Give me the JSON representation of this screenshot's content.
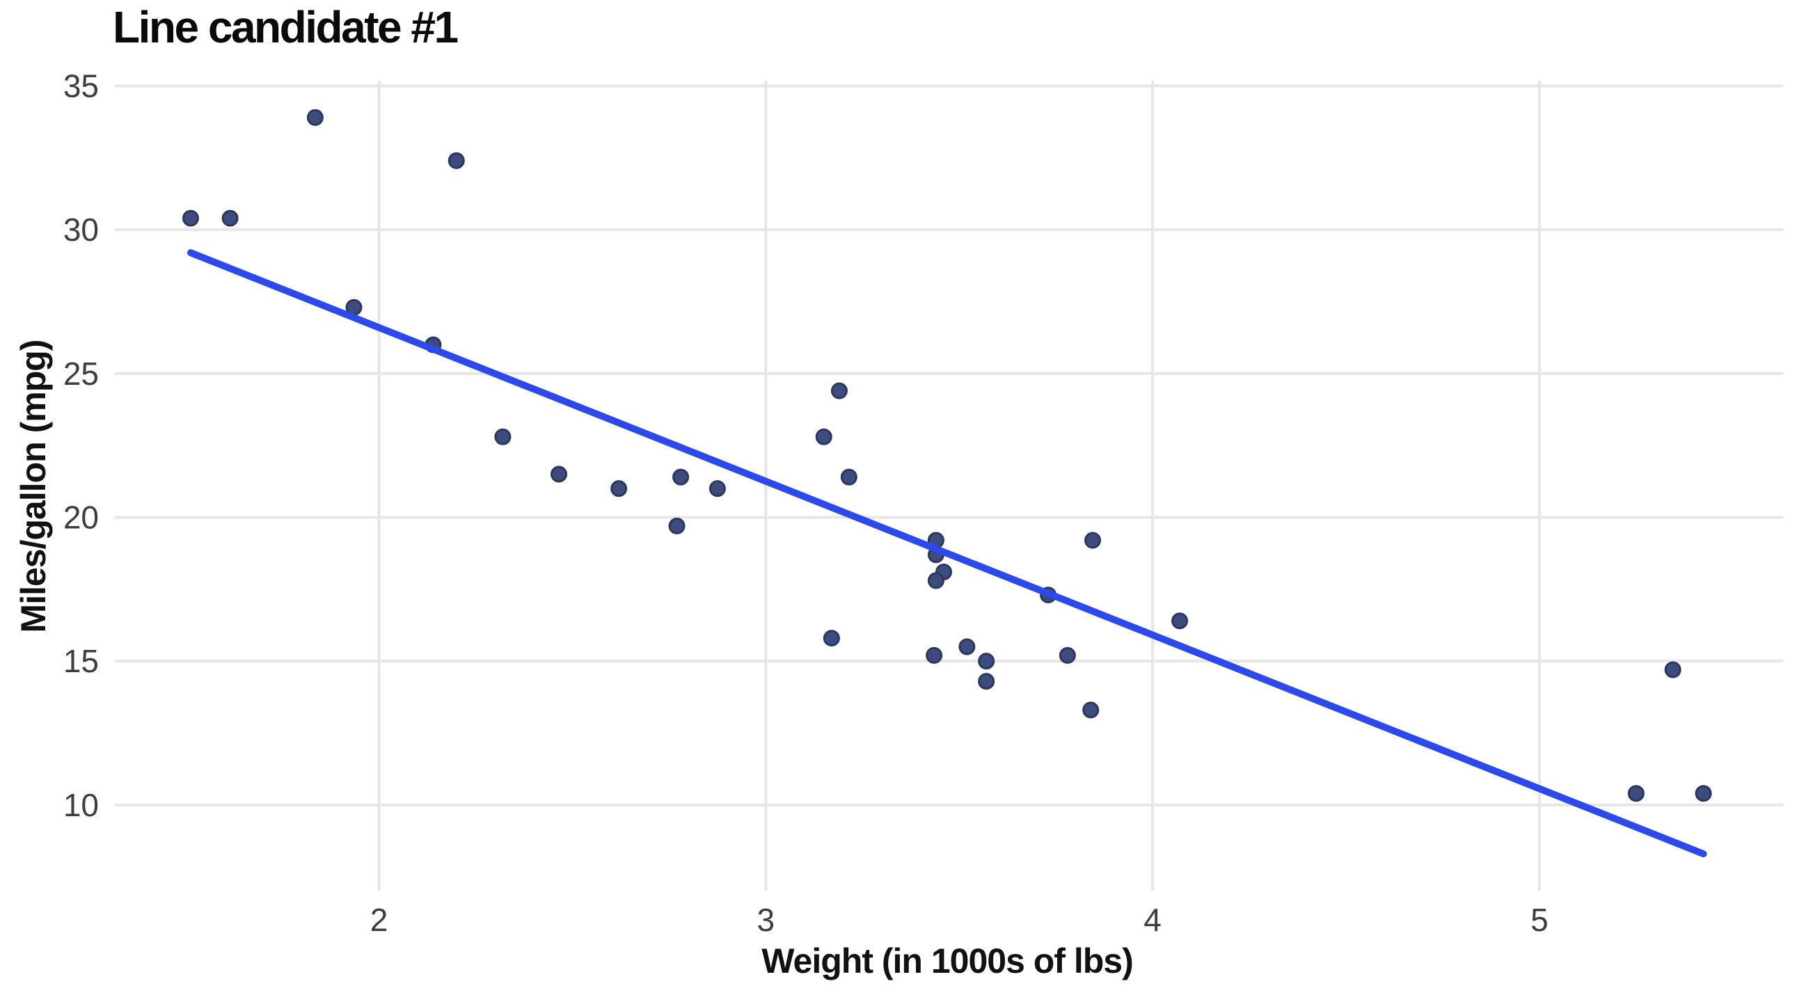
{
  "chart_data": {
    "type": "scatter",
    "title": "Line candidate #1",
    "xlabel": "Weight (in 1000s of lbs)",
    "ylabel": "Miles/gallon (mpg)",
    "xlim": [
      1.317,
      5.63
    ],
    "ylim": [
      7.02,
      35.18
    ],
    "x_ticks": [
      2,
      3,
      4,
      5
    ],
    "y_ticks": [
      10,
      15,
      20,
      25,
      30,
      35
    ],
    "grid": true,
    "legend": "none",
    "points": [
      [
        2.62,
        21.0
      ],
      [
        2.875,
        21.0
      ],
      [
        2.32,
        22.8
      ],
      [
        3.215,
        21.4
      ],
      [
        3.44,
        18.7
      ],
      [
        3.46,
        18.1
      ],
      [
        3.57,
        14.3
      ],
      [
        3.19,
        24.4
      ],
      [
        3.15,
        22.8
      ],
      [
        3.44,
        19.2
      ],
      [
        3.44,
        17.8
      ],
      [
        4.07,
        16.4
      ],
      [
        3.73,
        17.3
      ],
      [
        3.78,
        15.2
      ],
      [
        5.25,
        10.4
      ],
      [
        5.424,
        10.4
      ],
      [
        5.345,
        14.7
      ],
      [
        2.2,
        32.4
      ],
      [
        1.615,
        30.4
      ],
      [
        1.835,
        33.9
      ],
      [
        2.465,
        21.5
      ],
      [
        3.52,
        15.5
      ],
      [
        3.435,
        15.2
      ],
      [
        3.84,
        13.3
      ],
      [
        3.845,
        19.2
      ],
      [
        1.935,
        27.3
      ],
      [
        2.14,
        26.0
      ],
      [
        1.513,
        30.4
      ],
      [
        3.17,
        15.8
      ],
      [
        2.77,
        19.7
      ],
      [
        3.57,
        15.0
      ],
      [
        2.78,
        21.4
      ]
    ],
    "fit_line": {
      "x1": 1.513,
      "y1": 29.2,
      "x2": 5.424,
      "y2": 8.3
    },
    "colors": {
      "line": "#2C49EC",
      "point_fill": "#3E4C7D",
      "point_stroke": "#2A3760",
      "grid": "#E6E6E6",
      "tick_label": "#3E3E3E",
      "title": "#0A0A0A",
      "axis_title": "#111111",
      "background": "#FFFFFF"
    }
  }
}
